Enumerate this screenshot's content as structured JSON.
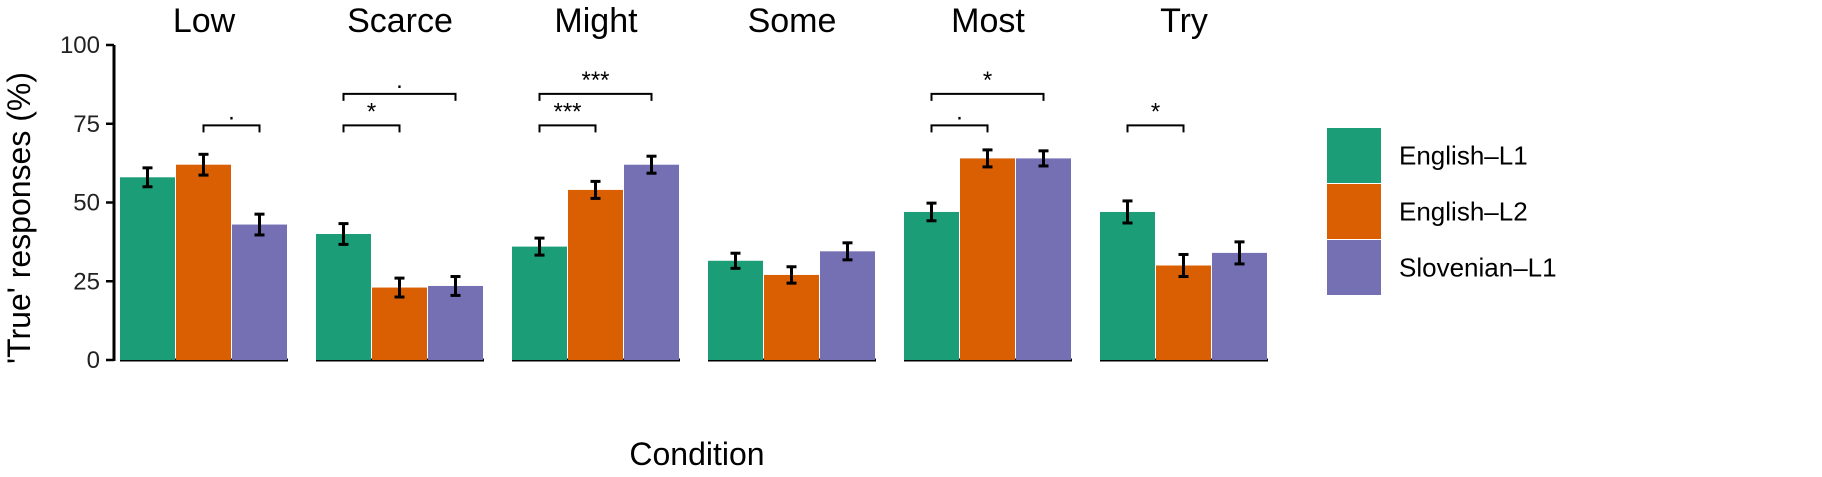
{
  "chart_data": {
    "type": "bar",
    "ylabel": "'True' responses (%)",
    "xlabel": "Condition",
    "ylim": [
      0,
      100
    ],
    "yticks": [
      0,
      25,
      50,
      75,
      100
    ],
    "legend_position": "right",
    "series": [
      {
        "name": "English–L1",
        "color": "#1b9e77"
      },
      {
        "name": "English–L2",
        "color": "#d95f02"
      },
      {
        "name": "Slovenian–L1",
        "color": "#7570b3"
      }
    ],
    "facets": [
      {
        "title": "Low",
        "values": [
          58,
          62,
          43
        ],
        "errors": [
          3,
          3.3,
          3.3
        ],
        "sig": [
          {
            "from": 1,
            "to": 2,
            "label": ".",
            "y": 74.5
          }
        ]
      },
      {
        "title": "Scarce",
        "values": [
          40,
          23,
          23.5
        ],
        "errors": [
          3.3,
          3,
          3
        ],
        "sig": [
          {
            "from": 0,
            "to": 2,
            "label": ".",
            "y": 84.5
          },
          {
            "from": 0,
            "to": 1,
            "label": "*",
            "y": 74.5
          }
        ]
      },
      {
        "title": "Might",
        "values": [
          36,
          54,
          62
        ],
        "errors": [
          2.7,
          2.7,
          2.7
        ],
        "sig": [
          {
            "from": 0,
            "to": 2,
            "label": "***",
            "y": 84.5
          },
          {
            "from": 0,
            "to": 1,
            "label": "***",
            "y": 74.5
          }
        ]
      },
      {
        "title": "Some",
        "values": [
          31.5,
          27,
          34.5
        ],
        "errors": [
          2.4,
          2.6,
          2.7
        ],
        "sig": []
      },
      {
        "title": "Most",
        "values": [
          47,
          64,
          64
        ],
        "errors": [
          2.8,
          2.7,
          2.4
        ],
        "sig": [
          {
            "from": 0,
            "to": 2,
            "label": "*",
            "y": 84.5
          },
          {
            "from": 0,
            "to": 1,
            "label": ".",
            "y": 74.5
          }
        ]
      },
      {
        "title": "Try",
        "values": [
          47,
          30,
          34
        ],
        "errors": [
          3.5,
          3.5,
          3.5
        ],
        "sig": [
          {
            "from": 0,
            "to": 1,
            "label": "*",
            "y": 74.5
          }
        ]
      }
    ]
  }
}
